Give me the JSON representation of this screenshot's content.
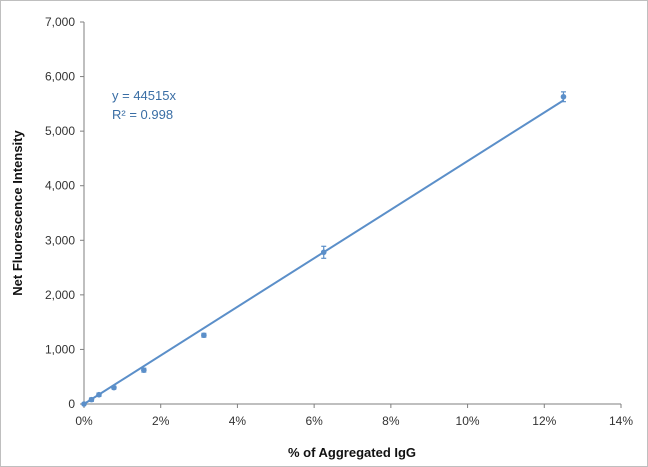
{
  "colors": {
    "series": "#5b8fc9",
    "annotation": "#3a6ea5",
    "axis": "#7f7f7f"
  },
  "chart_data": {
    "type": "scatter",
    "xlabel": "% of Aggregated IgG",
    "ylabel": "Net Fluorescence Intensity",
    "xlim": [
      0,
      14
    ],
    "ylim": [
      0,
      7000
    ],
    "x_ticks": [
      0,
      2,
      4,
      6,
      8,
      10,
      12,
      14
    ],
    "x_tick_labels": [
      "0%",
      "2%",
      "4%",
      "6%",
      "8%",
      "10%",
      "12%",
      "14%"
    ],
    "y_ticks": [
      0,
      1000,
      2000,
      3000,
      4000,
      5000,
      6000,
      7000
    ],
    "y_tick_labels": [
      "0",
      "1,000",
      "2,000",
      "3,000",
      "4,000",
      "5,000",
      "6,000",
      "7,000"
    ],
    "grid": false,
    "legend": "none",
    "series": [
      {
        "x": [
          0,
          0.195,
          0.39,
          0.78,
          1.56,
          3.125,
          6.25,
          12.5
        ],
        "y": [
          0,
          80,
          170,
          300,
          620,
          1260,
          2780,
          5630
        ],
        "y_err": [
          10,
          30,
          30,
          25,
          35,
          35,
          110,
          90
        ]
      }
    ],
    "trendline": {
      "slope": 44515,
      "intercept": 0,
      "x_range": [
        0,
        12.5
      ]
    },
    "annotations": {
      "equation": "y = 44515x",
      "r_squared": "R² = 0.998"
    }
  }
}
